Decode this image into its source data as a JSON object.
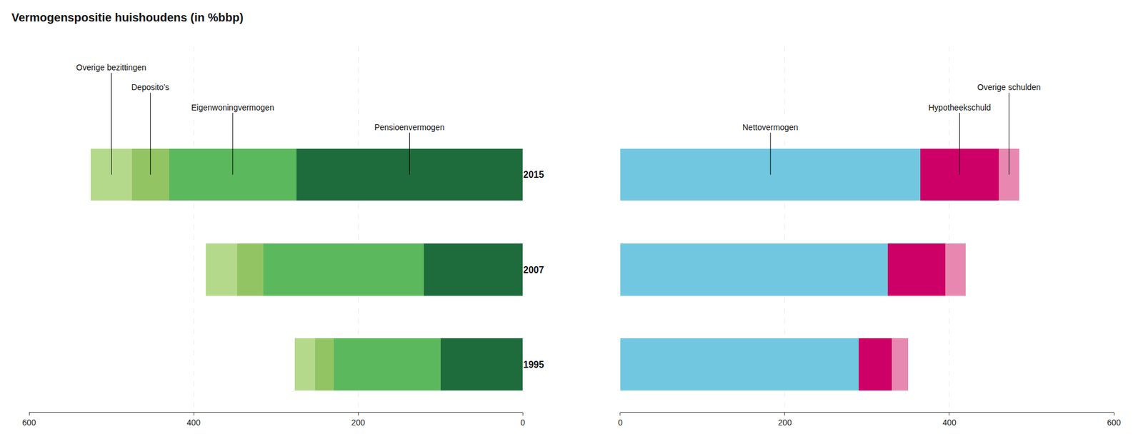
{
  "chart_data": [
    {
      "type": "bar",
      "title": "Vermogenspositie huishoudens (in %bbp)",
      "orientation": "horizontal",
      "stacked": true,
      "grid": true,
      "categories": [
        "2015",
        "2007",
        "1995"
      ],
      "series": [
        {
          "name": "Pensioenvermogen",
          "color": "#1e6b3c",
          "values": [
            275,
            120,
            100
          ]
        },
        {
          "name": "Eigenwoningvermogen",
          "color": "#5cb85c",
          "values": [
            155,
            195,
            130
          ]
        },
        {
          "name": "Deposito’s",
          "color": "#93c464",
          "values": [
            45,
            32,
            22
          ]
        },
        {
          "name": "Overige bezittingen",
          "color": "#b5d98a",
          "values": [
            50,
            38,
            25
          ]
        }
      ],
      "xlim": [
        600,
        0
      ],
      "xticks": [
        600,
        400,
        200,
        0
      ]
    },
    {
      "type": "bar",
      "orientation": "horizontal",
      "stacked": true,
      "grid": true,
      "tick_labels": "x",
      "categories": [
        "2015",
        "2007",
        "1995"
      ],
      "series": [
        {
          "name": "Nettovermogen",
          "color": "#72c7e0",
          "values": [
            365,
            325,
            290
          ]
        },
        {
          "name": "Hypotheekschuld",
          "color": "#cc0066",
          "values": [
            95,
            70,
            40
          ]
        },
        {
          "name": "Overige schulden",
          "color": "#e888b0",
          "values": [
            25,
            25,
            20
          ]
        }
      ],
      "xlim": [
        0,
        600
      ],
      "xticks": [
        0,
        200,
        400,
        600
      ]
    }
  ]
}
